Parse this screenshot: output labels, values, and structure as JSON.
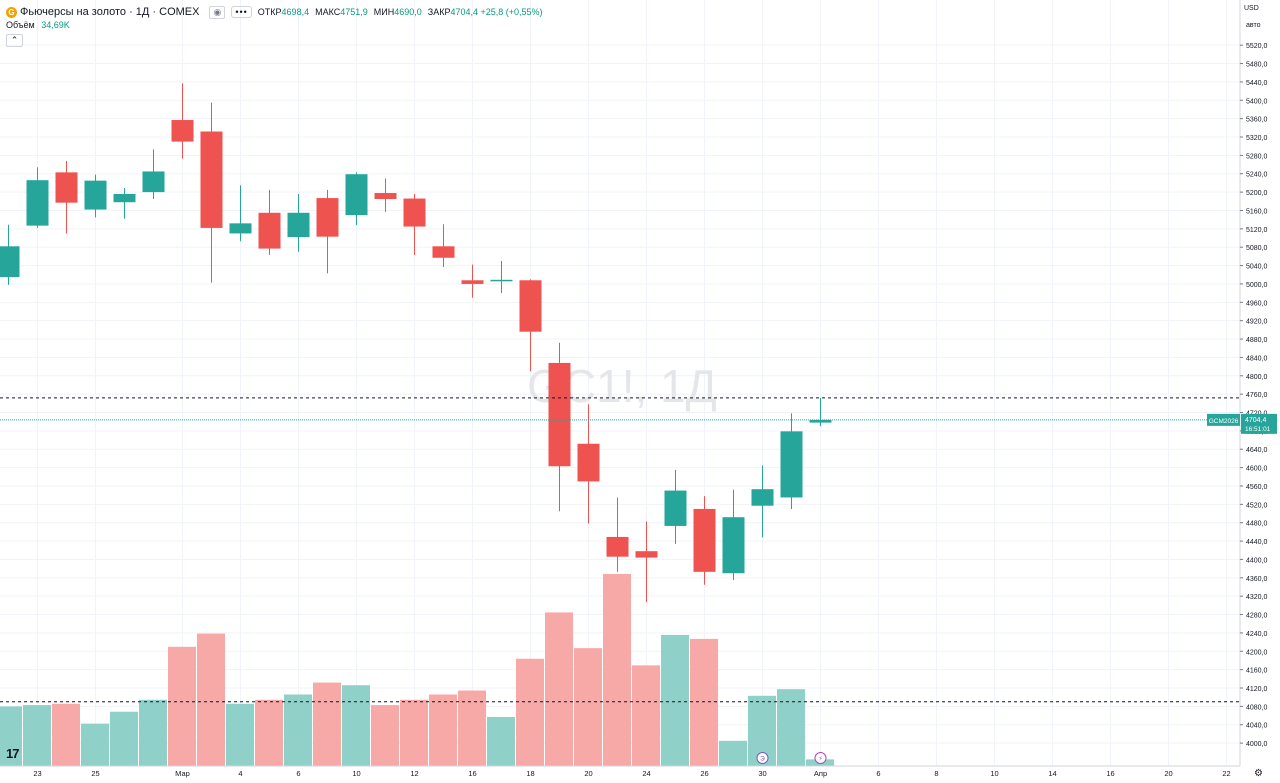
{
  "legend": {
    "symbol_icon": "gold-futures-icon",
    "title": "Фьючерсы на золото · 1Д · COMEX",
    "eye_icon": "eye-icon",
    "more_icon": "more-icon",
    "open_label": "ОТКР",
    "open_value": "4698,4",
    "high_label": "МАКС",
    "high_value": "4751,9",
    "low_label": "МИН",
    "low_value": "4690,0",
    "close_label": "ЗАКР",
    "close_value": "4704,4 +25,8 (+0,55%)"
  },
  "volume_legend": {
    "label": "Объём",
    "value": "34,69K"
  },
  "currency": "USD",
  "units": "авто",
  "watermark": "GC1!, 1Д",
  "price_tag": {
    "symbol": "GCM2026",
    "price": "4704,4",
    "countdown": "16:51:01"
  },
  "event_icons": [
    "dividend-icon",
    "flash-icon"
  ],
  "event_labels": [
    "Э",
    "⚡"
  ],
  "logo_text": "17",
  "colors": {
    "up": "#26a69a",
    "down": "#ef5350",
    "vol_up": "#8fd0c9",
    "vol_down": "#f7a9a7",
    "grid": "#f0f3fa",
    "price_line": "#26a69a"
  },
  "chart_data": {
    "type": "candlestick",
    "title": "",
    "ylim": [
      3985,
      5540
    ],
    "yticks": [
      4000,
      4040,
      4080,
      4120,
      4160,
      4200,
      4240,
      4280,
      4320,
      4360,
      4400,
      4440,
      4480,
      4520,
      4560,
      4600,
      4640,
      4680,
      4720,
      4760,
      4800,
      4840,
      4880,
      4920,
      4960,
      5000,
      5040,
      5080,
      5120,
      5160,
      5200,
      5240,
      5280,
      5320,
      5360,
      5400,
      5440,
      5480,
      5520
    ],
    "ytick_labels": [
      "4000,0",
      "4040,0",
      "4080,0",
      "4120,0",
      "4160,0",
      "4200,0",
      "4240,0",
      "4280,0",
      "4320,0",
      "4360,0",
      "4400,0",
      "4440,0",
      "4480,0",
      "4520,0",
      "4560,0",
      "4600,0",
      "4640,0",
      "4680,0",
      "4720,0",
      "4760,0",
      "4800,0",
      "4840,0",
      "4880,0",
      "4920,0",
      "4960,0",
      "5000,0",
      "5040,0",
      "5080,0",
      "5120,0",
      "5160,0",
      "5200,0",
      "5240,0",
      "5280,0",
      "5320,0",
      "5360,0",
      "5400,0",
      "5440,0",
      "5480,0",
      "5520,0"
    ],
    "xticks": [
      {
        "label": "23",
        "slot": 1
      },
      {
        "label": "25",
        "slot": 3
      },
      {
        "label": "Мар",
        "slot": 6
      },
      {
        "label": "4",
        "slot": 8
      },
      {
        "label": "6",
        "slot": 10
      },
      {
        "label": "10",
        "slot": 12
      },
      {
        "label": "12",
        "slot": 14
      },
      {
        "label": "16",
        "slot": 16
      },
      {
        "label": "18",
        "slot": 18
      },
      {
        "label": "20",
        "slot": 20
      },
      {
        "label": "24",
        "slot": 22
      },
      {
        "label": "26",
        "slot": 24
      },
      {
        "label": "30",
        "slot": 26
      },
      {
        "label": "Апр",
        "slot": 28
      },
      {
        "label": "6",
        "slot": 30
      },
      {
        "label": "8",
        "slot": 32
      },
      {
        "label": "10",
        "slot": 34
      },
      {
        "label": "14",
        "slot": 36
      },
      {
        "label": "16",
        "slot": 38
      },
      {
        "label": "20",
        "slot": 40
      },
      {
        "label": "22",
        "slot": 42
      }
    ],
    "candles": [
      {
        "o": 5015,
        "h": 5129,
        "l": 4998,
        "c": 5082
      },
      {
        "o": 5127,
        "h": 5254,
        "l": 5122,
        "c": 5226
      },
      {
        "o": 5243,
        "h": 5268,
        "l": 5110,
        "c": 5177
      },
      {
        "o": 5162,
        "h": 5238,
        "l": 5145,
        "c": 5225
      },
      {
        "o": 5178,
        "h": 5209,
        "l": 5142,
        "c": 5196
      },
      {
        "o": 5200,
        "h": 5293,
        "l": 5185,
        "c": 5245
      },
      {
        "o": 5357,
        "h": 5437,
        "l": 5273,
        "c": 5310
      },
      {
        "o": 5332,
        "h": 5395,
        "l": 5003,
        "c": 5122
      },
      {
        "o": 5110,
        "h": 5215,
        "l": 5093,
        "c": 5132
      },
      {
        "o": 5155,
        "h": 5205,
        "l": 5063,
        "c": 5077
      },
      {
        "o": 5102,
        "h": 5196,
        "l": 5070,
        "c": 5155
      },
      {
        "o": 5187,
        "h": 5205,
        "l": 5023,
        "c": 5103
      },
      {
        "o": 5150,
        "h": 5243,
        "l": 5128,
        "c": 5239
      },
      {
        "o": 5198,
        "h": 5230,
        "l": 5157,
        "c": 5185
      },
      {
        "o": 5186,
        "h": 5196,
        "l": 5063,
        "c": 5125
      },
      {
        "o": 5082,
        "h": 5130,
        "l": 5037,
        "c": 5057
      },
      {
        "o": 5008,
        "h": 5042,
        "l": 4970,
        "c": 5000
      },
      {
        "o": 5006,
        "h": 5050,
        "l": 4980,
        "c": 5009
      },
      {
        "o": 5008,
        "h": 5010,
        "l": 4810,
        "c": 4896
      },
      {
        "o": 4828,
        "h": 4872,
        "l": 4505,
        "c": 4603
      },
      {
        "o": 4652,
        "h": 4738,
        "l": 4478,
        "c": 4570
      },
      {
        "o": 4449,
        "h": 4535,
        "l": 4373,
        "c": 4406
      },
      {
        "o": 4418,
        "h": 4483,
        "l": 4307,
        "c": 4404
      },
      {
        "o": 4473,
        "h": 4595,
        "l": 4434,
        "c": 4550
      },
      {
        "o": 4510,
        "h": 4538,
        "l": 4345,
        "c": 4373
      },
      {
        "o": 4370,
        "h": 4552,
        "l": 4355,
        "c": 4492
      },
      {
        "o": 4517,
        "h": 4605,
        "l": 4448,
        "c": 4553
      },
      {
        "o": 4535,
        "h": 4718,
        "l": 4510,
        "c": 4679
      },
      {
        "o": 4698,
        "h": 4752,
        "l": 4690,
        "c": 4704
      }
    ],
    "volumes": [
      0.45,
      0.46,
      0.47,
      0.32,
      0.41,
      0.5,
      0.9,
      1.0,
      0.47,
      0.5,
      0.54,
      0.63,
      0.61,
      0.46,
      0.5,
      0.54,
      0.57,
      0.37,
      0.81,
      1.16,
      0.89,
      1.45,
      0.76,
      0.99,
      0.96,
      0.19,
      0.53,
      0.58,
      0.05
    ],
    "dashed_levels": [
      4752,
      4090
    ]
  }
}
